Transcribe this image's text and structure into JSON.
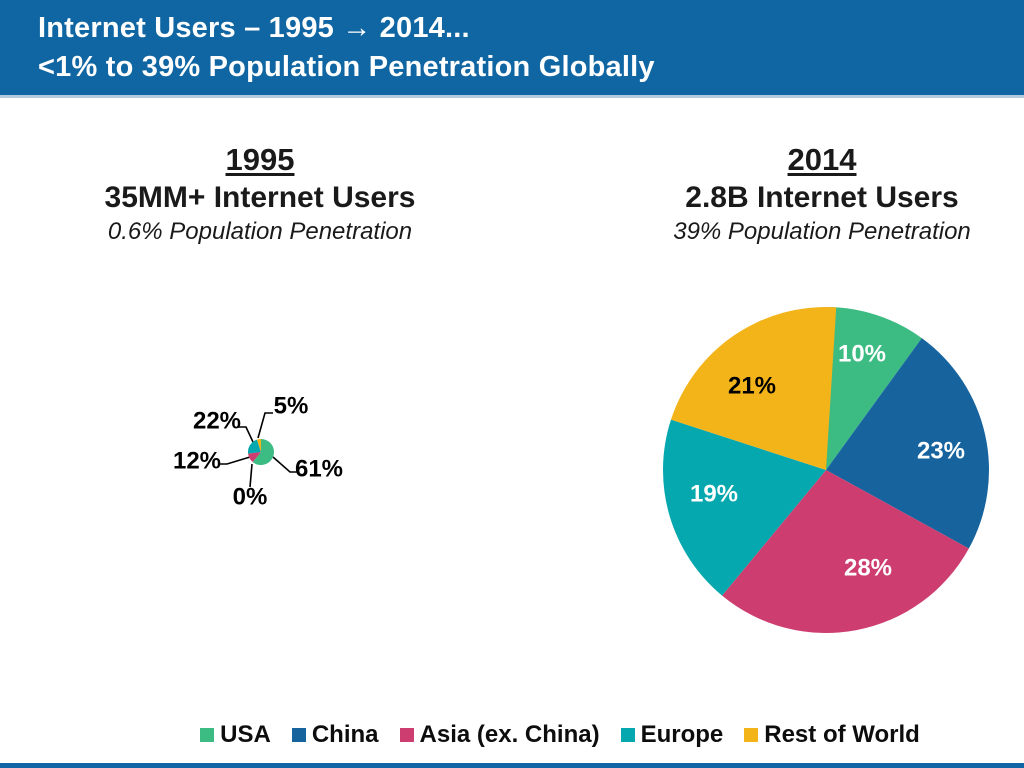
{
  "header": {
    "title_line1": "Internet Users – 1995 → 2014...",
    "title_line2": "<1% to 39% Population Penetration Globally",
    "bg_color": "#1066a2",
    "separator_color": "#b3cbdc",
    "text_color": "#ffffff"
  },
  "columns": {
    "left": {
      "year": "1995",
      "users": "35MM+ Internet Users",
      "penetration": "0.6% Population Penetration"
    },
    "right": {
      "year": "2014",
      "users": "2.8B Internet Users",
      "penetration": "39% Population Penetration"
    }
  },
  "legend": [
    {
      "label": "USA",
      "color": "#3cbb83"
    },
    {
      "label": "China",
      "color": "#16639e"
    },
    {
      "label": "Asia (ex. China)",
      "color": "#ce3d6f"
    },
    {
      "label": "Europe",
      "color": "#05a8ae"
    },
    {
      "label": "Rest of World",
      "color": "#f3b41a"
    }
  ],
  "chart_data": [
    {
      "type": "pie",
      "title": "1995 – 35MM+ Internet Users (0.6% Population Penetration)",
      "categories": [
        "USA",
        "China",
        "Asia (ex. China)",
        "Europe",
        "Rest of World"
      ],
      "values": [
        61,
        0,
        12,
        22,
        5
      ],
      "value_labels": [
        "61%",
        "0%",
        "12%",
        "22%",
        "5%"
      ],
      "colors": [
        "#3cbb83",
        "#16639e",
        "#ce3d6f",
        "#05a8ae",
        "#f3b41a"
      ],
      "label_colors": [
        "#000000",
        "#000000",
        "#000000",
        "#000000",
        "#000000"
      ],
      "label_style": "outside-with-leader-lines",
      "start_angle_deg": 0,
      "direction": "clockwise",
      "legend_position": "bottom-shared"
    },
    {
      "type": "pie",
      "title": "2014 – 2.8B Internet Users (39% Population Penetration)",
      "categories": [
        "USA",
        "China",
        "Asia (ex. China)",
        "Europe",
        "Rest of World"
      ],
      "values": [
        10,
        23,
        28,
        19,
        21
      ],
      "value_labels": [
        "10%",
        "23%",
        "28%",
        "19%",
        "21%"
      ],
      "colors": [
        "#3cbb83",
        "#16639e",
        "#ce3d6f",
        "#05a8ae",
        "#f3b41a"
      ],
      "label_colors": [
        "#ffffff",
        "#ffffff",
        "#ffffff",
        "#ffffff",
        "#000000"
      ],
      "label_style": "inside",
      "start_angle_deg": 0,
      "direction": "clockwise",
      "legend_position": "bottom-shared"
    }
  ],
  "footer": {
    "bar_color": "#1066a2"
  }
}
